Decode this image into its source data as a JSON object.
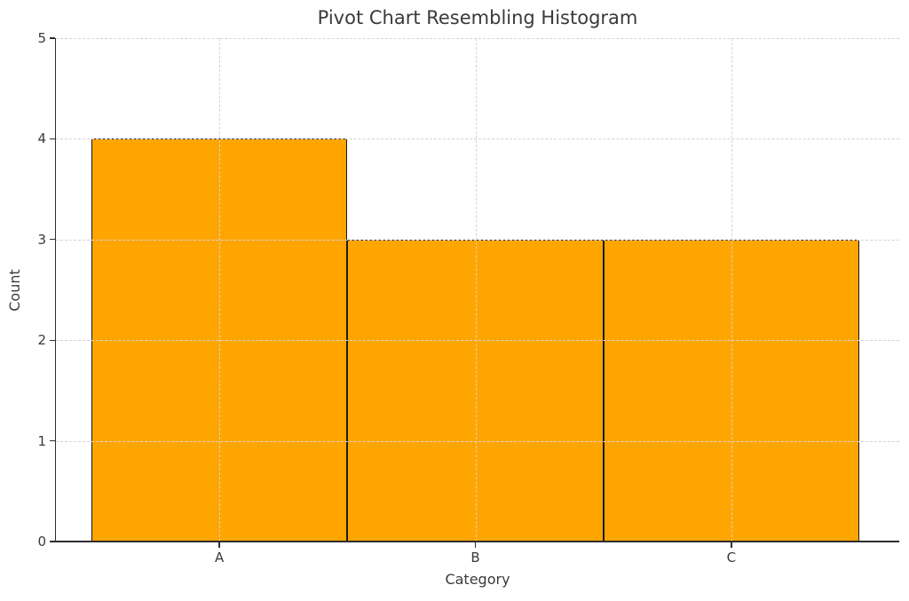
{
  "chart_data": {
    "type": "bar",
    "subtype": "histogram-like-adjacent-bars",
    "title": "Pivot Chart Resembling Histogram",
    "xlabel": "Category",
    "ylabel": "Count",
    "categories": [
      "A",
      "B",
      "C"
    ],
    "values": [
      4,
      3,
      3
    ],
    "ylim": [
      0,
      5
    ],
    "yticks": [
      0,
      1,
      2,
      3,
      4,
      5
    ],
    "grid": true,
    "grid_style": "dashed",
    "grid_above_bars": true,
    "legend": false,
    "bar_fill_color": "#FFA500",
    "bar_edge_color": "#1b1b1b",
    "grid_color": "#d4d4d4",
    "spine_color": "#2e2e2e",
    "text_color": "#3a3a3a",
    "background_color": "#ffffff"
  }
}
